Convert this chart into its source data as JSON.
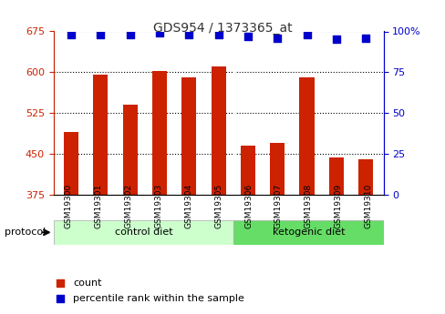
{
  "title": "GDS954 / 1373365_at",
  "samples": [
    "GSM19300",
    "GSM19301",
    "GSM19302",
    "GSM19303",
    "GSM19304",
    "GSM19305",
    "GSM19306",
    "GSM19307",
    "GSM19308",
    "GSM19309",
    "GSM19310"
  ],
  "counts": [
    490,
    595,
    540,
    602,
    590,
    610,
    465,
    470,
    590,
    443,
    440
  ],
  "percentile_ranks": [
    98,
    98,
    98,
    99,
    98,
    98,
    97,
    96,
    98,
    95,
    96
  ],
  "ylim_left": [
    375,
    675
  ],
  "ylim_right": [
    0,
    100
  ],
  "yticks_left": [
    375,
    450,
    525,
    600,
    675
  ],
  "yticks_right": [
    0,
    25,
    50,
    75,
    100
  ],
  "bar_color": "#cc2200",
  "dot_color": "#0000cc",
  "control_diet_indices": [
    0,
    1,
    2,
    3,
    4,
    5
  ],
  "ketogenic_diet_indices": [
    6,
    7,
    8,
    9,
    10
  ],
  "control_label": "control diet",
  "ketogenic_label": "ketogenic diet",
  "protocol_label": "protocol",
  "legend_count": "count",
  "legend_percentile": "percentile rank within the sample",
  "bg_plot": "#f0f0f0",
  "bg_control": "#ccffcc",
  "bg_ketogenic": "#66dd66",
  "title_color": "#333333",
  "left_axis_color": "#cc2200",
  "right_axis_color": "#0000cc"
}
